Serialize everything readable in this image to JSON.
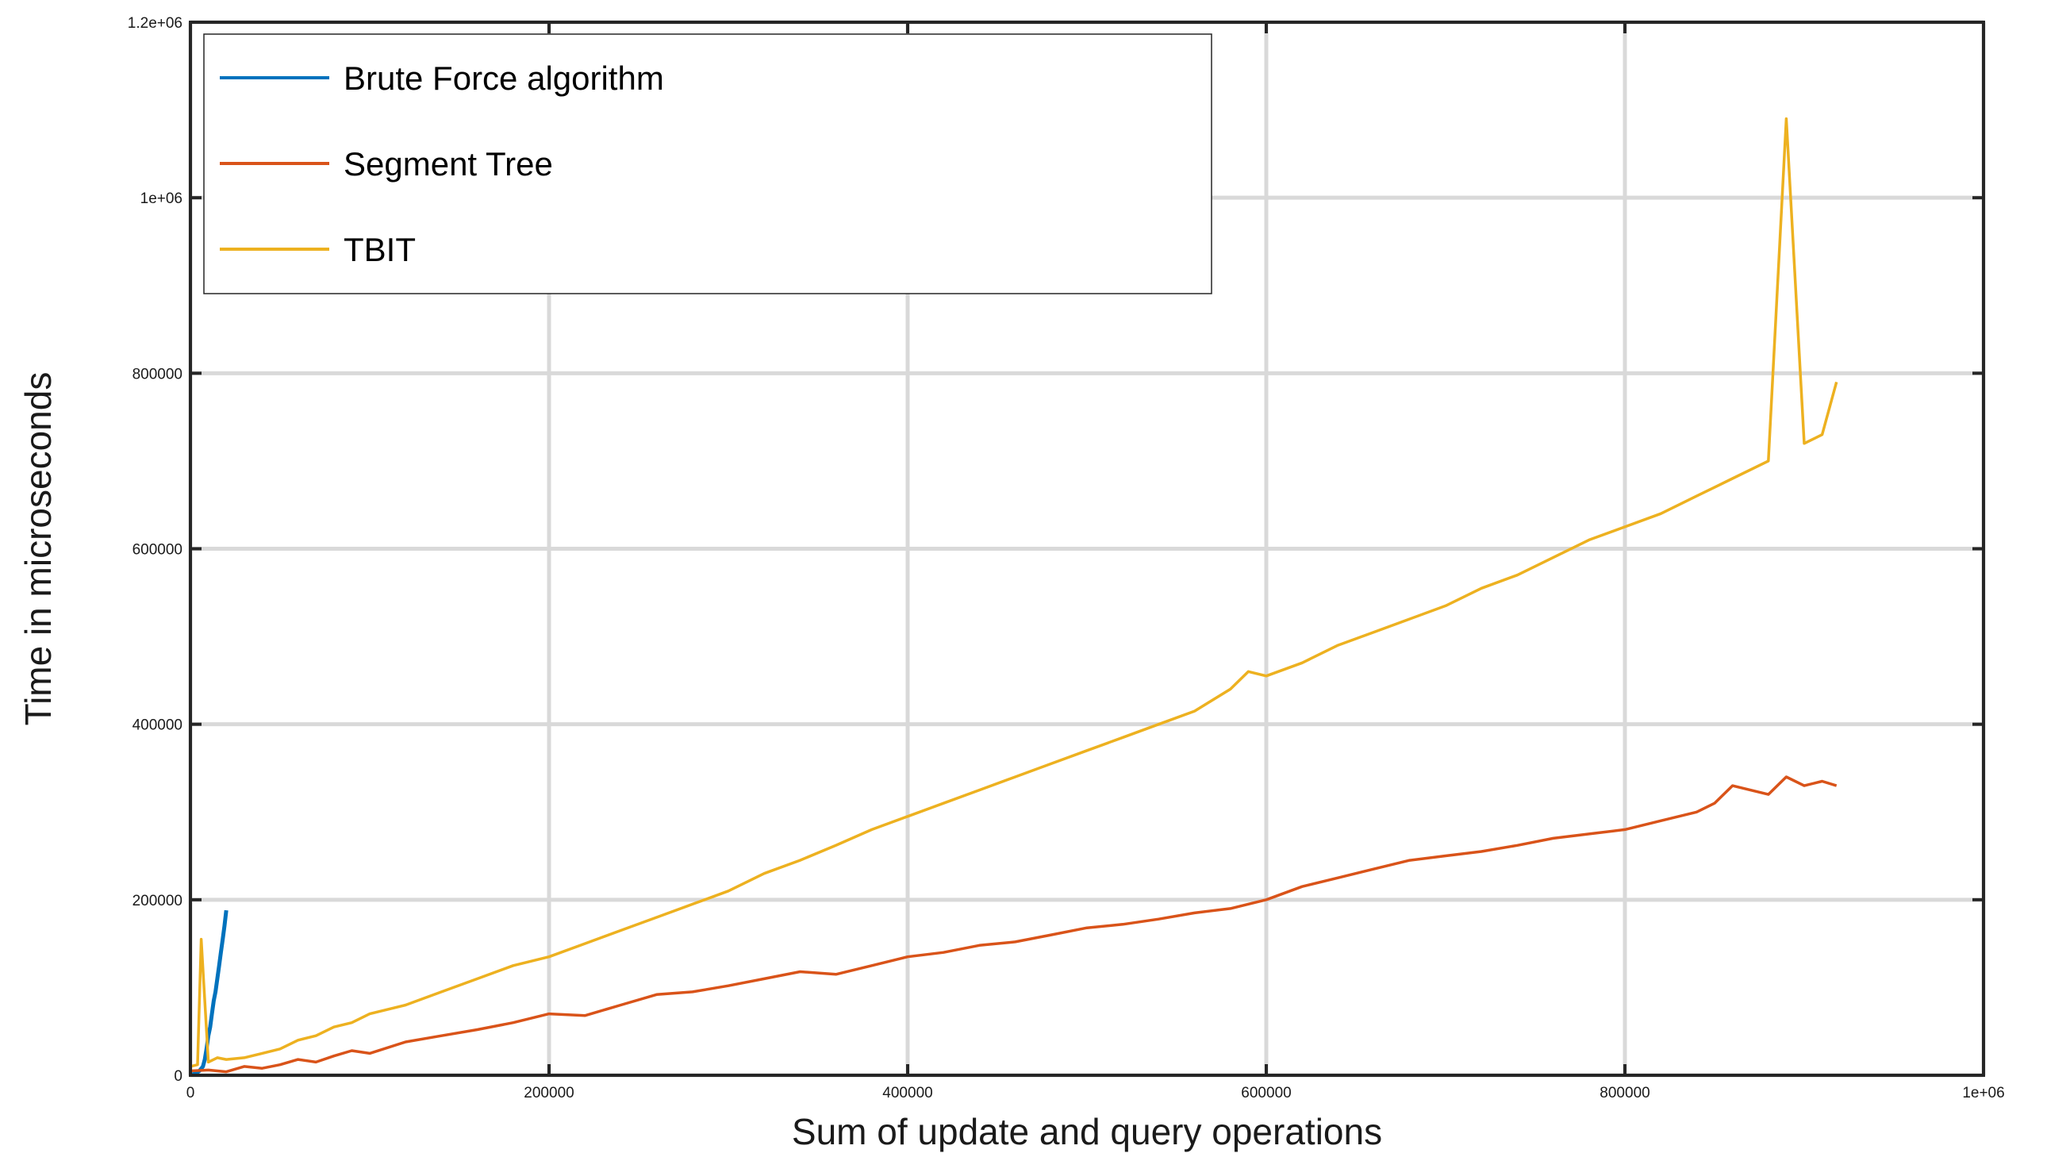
{
  "chart_data": {
    "type": "line",
    "title": "",
    "xlabel": "Sum of update and query operations",
    "ylabel": "Time in microseconds",
    "xlim": [
      0,
      1000000
    ],
    "ylim": [
      0,
      1200000
    ],
    "grid": true,
    "legend_position": "top-left",
    "x_ticks": [
      {
        "value": 0,
        "label": "0"
      },
      {
        "value": 200000,
        "label": "200000"
      },
      {
        "value": 400000,
        "label": "400000"
      },
      {
        "value": 600000,
        "label": "600000"
      },
      {
        "value": 800000,
        "label": "800000"
      },
      {
        "value": 1000000,
        "label": "1e+06"
      }
    ],
    "y_ticks": [
      {
        "value": 0,
        "label": "0"
      },
      {
        "value": 200000,
        "label": "200000"
      },
      {
        "value": 400000,
        "label": "400000"
      },
      {
        "value": 600000,
        "label": "600000"
      },
      {
        "value": 800000,
        "label": "800000"
      },
      {
        "value": 1000000,
        "label": "1e+06"
      },
      {
        "value": 1200000,
        "label": "1.2e+06"
      }
    ],
    "series": [
      {
        "name": "Brute Force algorithm",
        "color": "#0072BD",
        "x": [
          1000,
          3000,
          5000,
          7000,
          8000,
          9000,
          10000,
          11000,
          12000,
          13000,
          14000,
          15000,
          16000,
          17000,
          18000,
          19000,
          20000
        ],
        "y": [
          1000,
          2000,
          5000,
          10000,
          18000,
          30000,
          45000,
          55000,
          70000,
          85000,
          95000,
          110000,
          125000,
          140000,
          155000,
          170000,
          188000
        ]
      },
      {
        "name": "Segment Tree",
        "color": "#D95319",
        "x": [
          0,
          10000,
          20000,
          30000,
          40000,
          50000,
          60000,
          70000,
          80000,
          90000,
          100000,
          120000,
          140000,
          160000,
          180000,
          200000,
          220000,
          240000,
          260000,
          280000,
          300000,
          320000,
          340000,
          360000,
          380000,
          400000,
          420000,
          440000,
          460000,
          480000,
          500000,
          520000,
          540000,
          560000,
          580000,
          600000,
          620000,
          640000,
          660000,
          680000,
          700000,
          720000,
          740000,
          760000,
          780000,
          800000,
          820000,
          840000,
          850000,
          860000,
          880000,
          890000,
          900000,
          910000,
          918000
        ],
        "y": [
          5000,
          6000,
          4000,
          10000,
          8000,
          12000,
          18000,
          15000,
          22000,
          28000,
          25000,
          38000,
          45000,
          52000,
          60000,
          70000,
          68000,
          80000,
          92000,
          95000,
          102000,
          110000,
          118000,
          115000,
          125000,
          135000,
          140000,
          148000,
          152000,
          160000,
          168000,
          172000,
          178000,
          185000,
          190000,
          200000,
          215000,
          225000,
          235000,
          245000,
          250000,
          255000,
          262000,
          270000,
          275000,
          280000,
          290000,
          300000,
          310000,
          330000,
          320000,
          340000,
          330000,
          335000,
          330000
        ]
      },
      {
        "name": "TBIT",
        "color": "#EDB120",
        "x": [
          0,
          4000,
          6000,
          10000,
          15000,
          20000,
          30000,
          40000,
          50000,
          60000,
          70000,
          80000,
          90000,
          100000,
          120000,
          140000,
          160000,
          180000,
          200000,
          220000,
          240000,
          260000,
          280000,
          300000,
          320000,
          340000,
          360000,
          380000,
          400000,
          420000,
          440000,
          460000,
          480000,
          500000,
          520000,
          540000,
          560000,
          580000,
          590000,
          600000,
          620000,
          640000,
          660000,
          680000,
          700000,
          720000,
          740000,
          760000,
          780000,
          800000,
          820000,
          840000,
          860000,
          880000,
          890000,
          900000,
          910000,
          918000
        ],
        "y": [
          10000,
          12000,
          155000,
          15000,
          20000,
          18000,
          20000,
          25000,
          30000,
          40000,
          45000,
          55000,
          60000,
          70000,
          80000,
          95000,
          110000,
          125000,
          135000,
          150000,
          165000,
          180000,
          195000,
          210000,
          230000,
          245000,
          262000,
          280000,
          295000,
          310000,
          325000,
          340000,
          355000,
          370000,
          385000,
          400000,
          415000,
          440000,
          460000,
          455000,
          470000,
          490000,
          505000,
          520000,
          535000,
          555000,
          570000,
          590000,
          610000,
          625000,
          640000,
          660000,
          680000,
          700000,
          1090000,
          720000,
          730000,
          790000
        ]
      }
    ]
  }
}
